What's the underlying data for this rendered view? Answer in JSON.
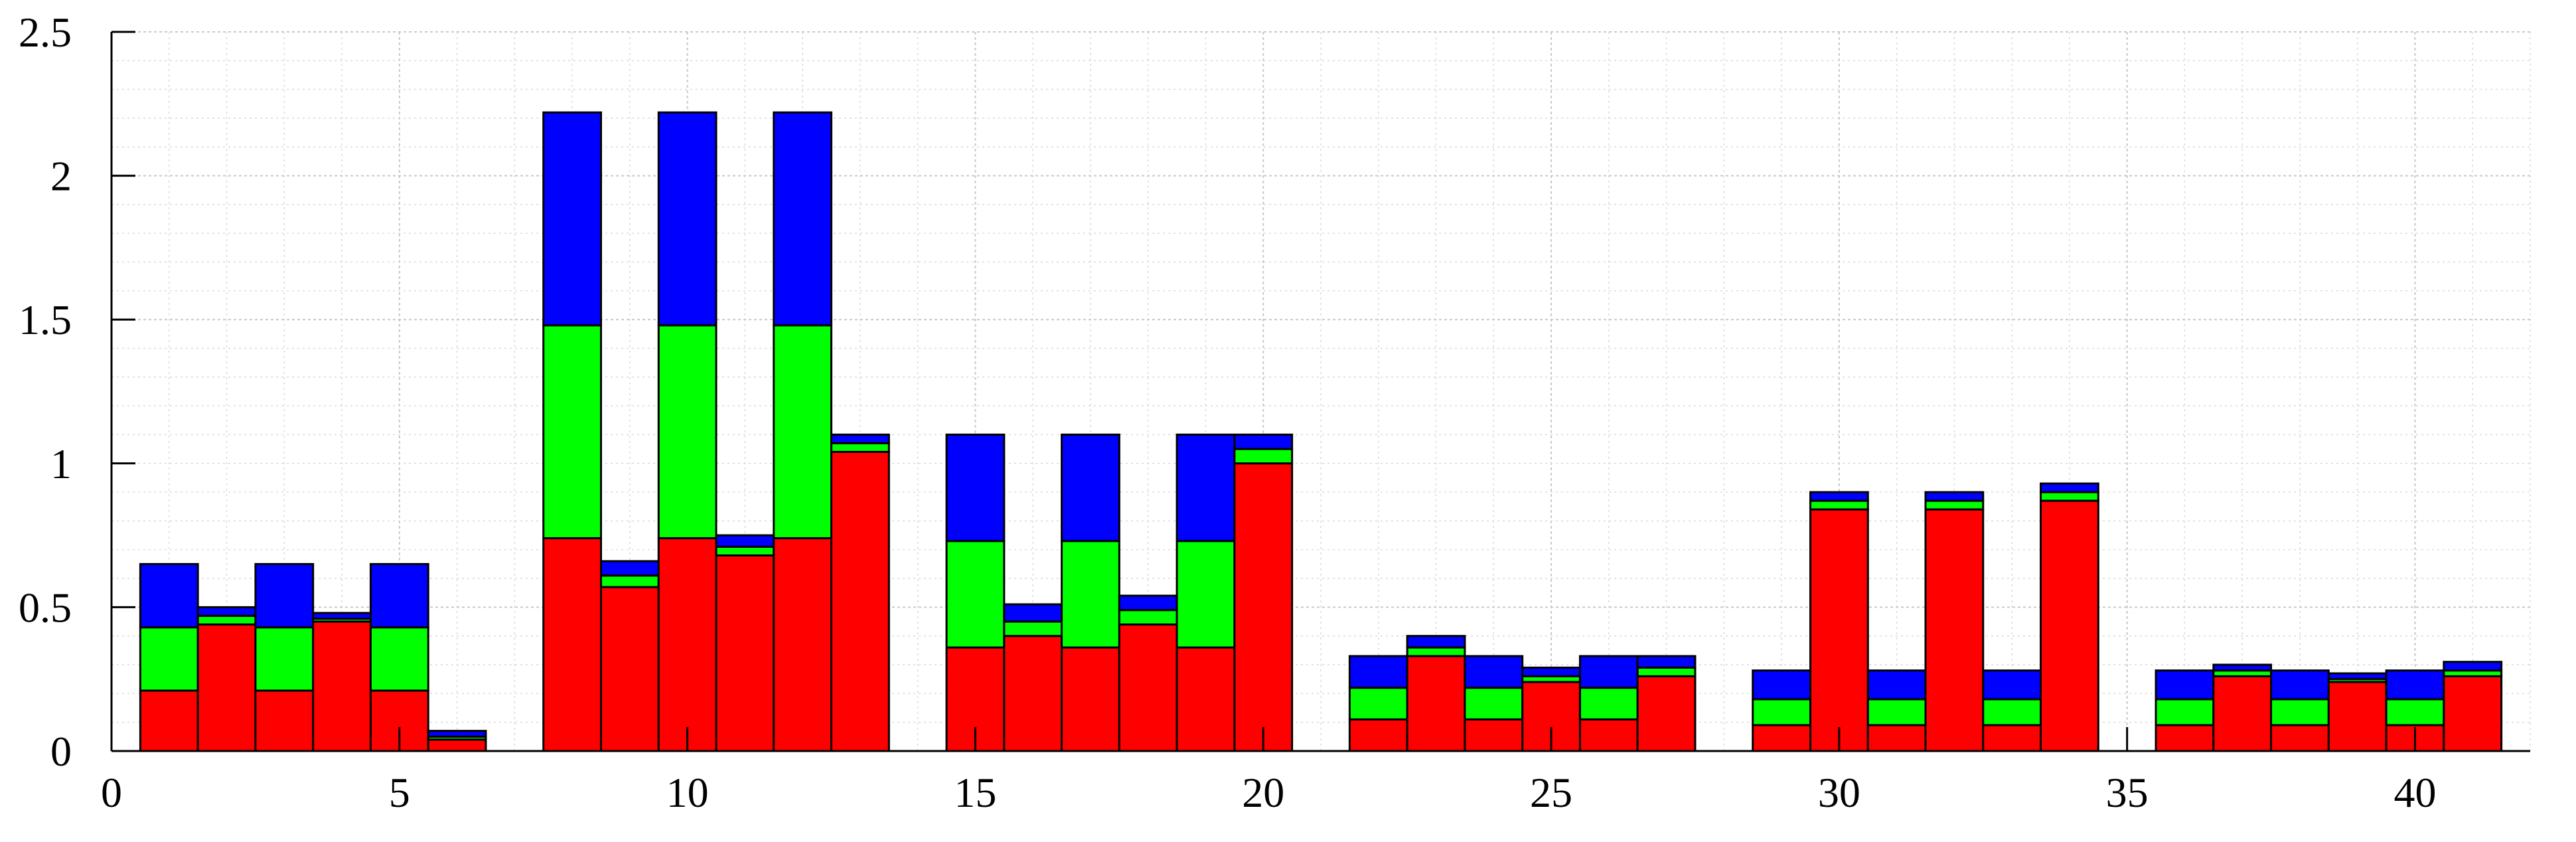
{
  "chart_data": {
    "type": "bar",
    "stacked": true,
    "title": "",
    "xlabel": "",
    "ylabel": "",
    "xlim": [
      0,
      42
    ],
    "ylim": [
      0,
      2.5
    ],
    "xticks": [
      "0",
      "5",
      "10",
      "15",
      "20",
      "25",
      "30",
      "35",
      "40"
    ],
    "yticks": [
      "0",
      "0.5",
      "1",
      "1.5",
      "2",
      "2.5"
    ],
    "grid": true,
    "legend": "none",
    "colors": {
      "red": "#ff0000",
      "green": "#00ff00",
      "blue": "#0000ff"
    },
    "x": [
      1,
      2,
      3,
      4,
      5,
      6,
      8,
      9,
      10,
      11,
      12,
      13,
      15,
      16,
      17,
      18,
      19,
      20,
      22,
      23,
      24,
      25,
      26,
      27,
      29,
      30,
      31,
      32,
      33,
      34,
      36,
      37,
      38,
      39,
      40,
      41
    ],
    "series": [
      {
        "color": "red",
        "values": [
          0.21,
          0.44,
          0.21,
          0.45,
          0.21,
          0.04,
          0.74,
          0.57,
          0.74,
          0.68,
          0.74,
          1.04,
          0.36,
          0.4,
          0.36,
          0.44,
          0.36,
          1.0,
          0.11,
          0.33,
          0.11,
          0.24,
          0.11,
          0.26,
          0.09,
          0.84,
          0.09,
          0.84,
          0.09,
          0.87,
          0.09,
          0.26,
          0.09,
          0.24,
          0.09,
          0.26
        ]
      },
      {
        "color": "green",
        "values": [
          0.22,
          0.03,
          0.22,
          0.01,
          0.22,
          0.01,
          0.74,
          0.04,
          0.74,
          0.03,
          0.74,
          0.03,
          0.37,
          0.05,
          0.37,
          0.05,
          0.37,
          0.05,
          0.11,
          0.03,
          0.11,
          0.02,
          0.11,
          0.03,
          0.09,
          0.03,
          0.09,
          0.03,
          0.09,
          0.03,
          0.09,
          0.02,
          0.09,
          0.01,
          0.09,
          0.02
        ]
      },
      {
        "color": "blue",
        "values": [
          0.22,
          0.03,
          0.22,
          0.02,
          0.22,
          0.02,
          0.74,
          0.05,
          0.74,
          0.04,
          0.74,
          0.03,
          0.37,
          0.06,
          0.37,
          0.05,
          0.37,
          0.05,
          0.11,
          0.04,
          0.11,
          0.03,
          0.11,
          0.04,
          0.1,
          0.03,
          0.1,
          0.03,
          0.1,
          0.03,
          0.1,
          0.02,
          0.1,
          0.02,
          0.1,
          0.03
        ]
      }
    ]
  }
}
